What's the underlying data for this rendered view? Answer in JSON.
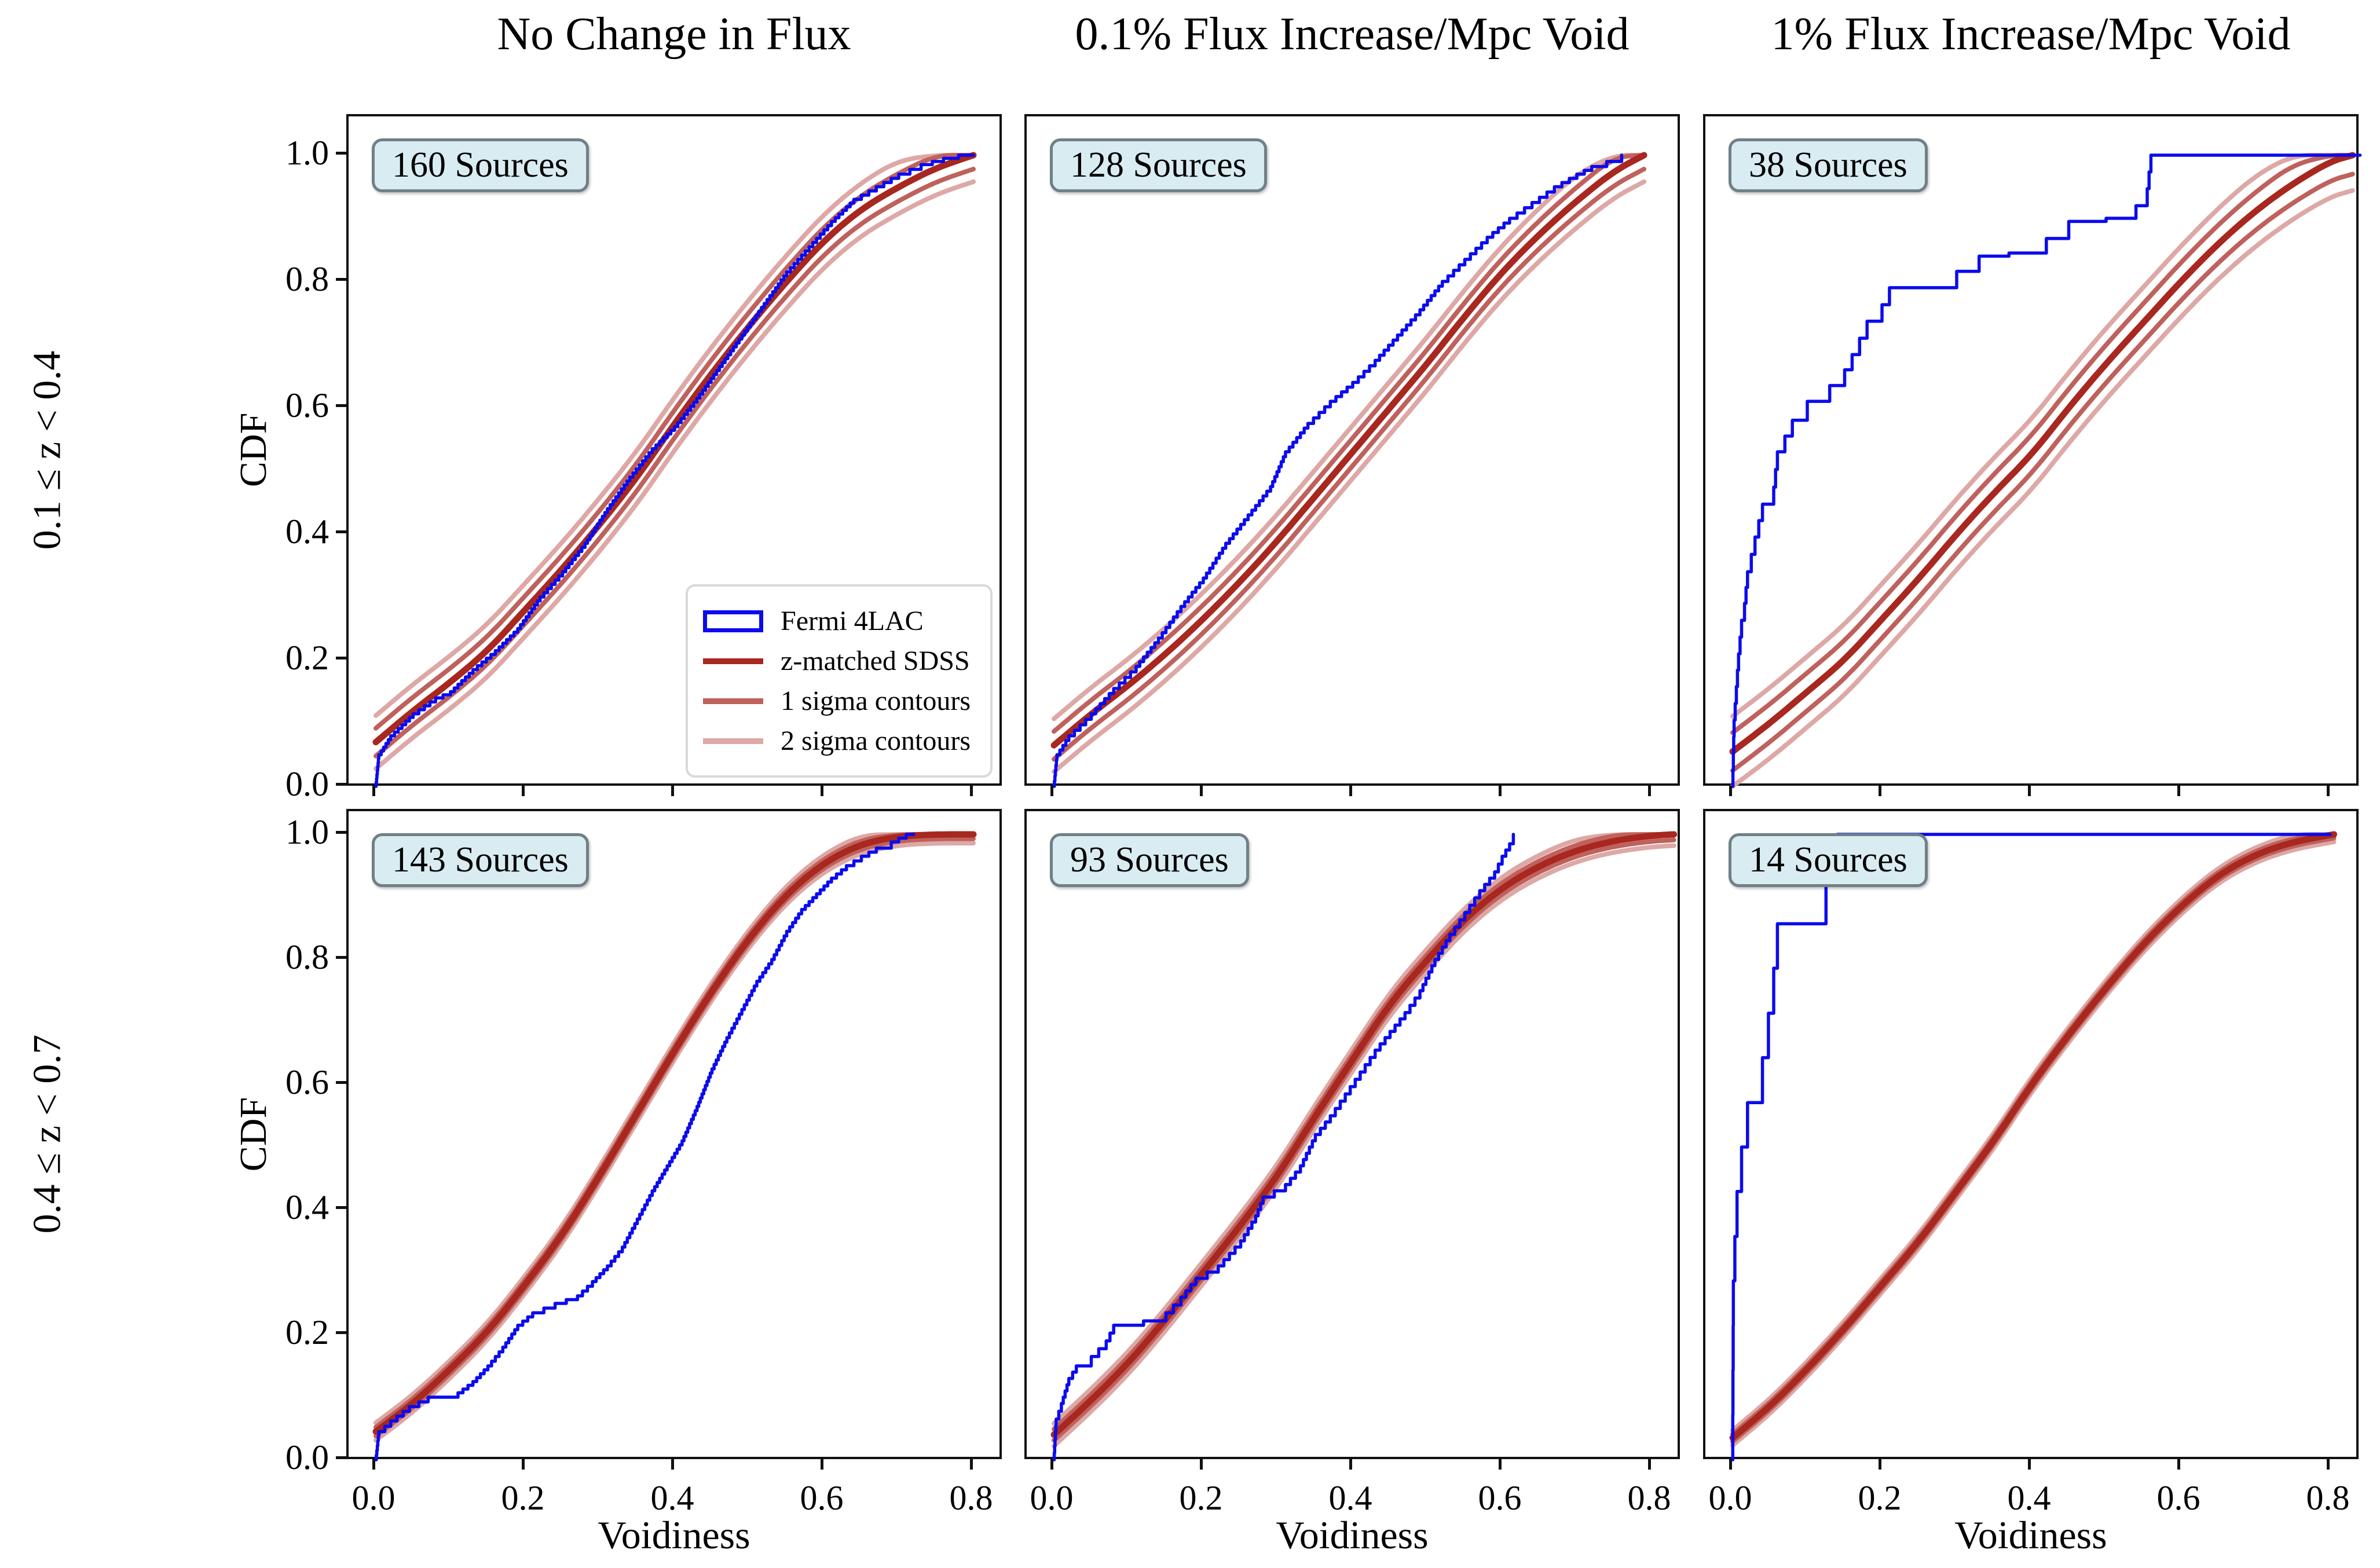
{
  "figure": {
    "column_titles": [
      "No Change in Flux",
      "0.1% Flux Increase/Mpc Void",
      "1% Flux Increase/Mpc Void"
    ],
    "row_labels": [
      "0.1 ≤ z < 0.4",
      "0.4 ≤ z < 0.7"
    ],
    "ylabel": "CDF",
    "xlabel": "Voidiness",
    "x_ticks": [
      0.0,
      0.2,
      0.4,
      0.6,
      0.8
    ],
    "y_ticks": [
      0.0,
      0.2,
      0.4,
      0.6,
      0.8,
      1.0
    ],
    "xlim": [
      0.0,
      0.85
    ],
    "ylim": [
      0.0,
      1.09
    ],
    "grid": false
  },
  "colors": {
    "fermi_blue": "#0b0bee",
    "sdss_red": "#a8271f",
    "sigma1_red": "#bf615c",
    "sigma2_pink": "#dda8a5",
    "badge_fill": "#d9ecf2",
    "badge_border": "#6f8086",
    "axis_black": "#111111"
  },
  "legend": {
    "entries": [
      {
        "label": "Fermi 4LAC",
        "type": "rect",
        "color": "#0b0bee"
      },
      {
        "label": "z-matched SDSS",
        "type": "line",
        "color": "#a8271f"
      },
      {
        "label": "1 sigma contours",
        "type": "line",
        "color": "#bf615c"
      },
      {
        "label": "2 sigma contours",
        "type": "line",
        "color": "#dda8a5"
      }
    ],
    "position": "lower right of first panel"
  },
  "chart_data": [
    {
      "type": "line",
      "panel": "row 0.1<=z<0.4, No Change in Flux",
      "badge": "160 Sources",
      "n_sources": 160,
      "sigma1_offset": 0.022,
      "sigma2_offset": 0.042,
      "fermi_4lac_ecdf": [
        [
          0,
          0
        ],
        [
          0.004,
          0.05
        ],
        [
          0.02,
          0.08
        ],
        [
          0.05,
          0.115
        ],
        [
          0.08,
          0.14
        ],
        [
          0.1,
          0.15
        ],
        [
          0.13,
          0.185
        ],
        [
          0.16,
          0.215
        ],
        [
          0.19,
          0.25
        ],
        [
          0.22,
          0.3
        ],
        [
          0.25,
          0.34
        ],
        [
          0.28,
          0.385
        ],
        [
          0.31,
          0.44
        ],
        [
          0.34,
          0.49
        ],
        [
          0.37,
          0.535
        ],
        [
          0.4,
          0.57
        ],
        [
          0.43,
          0.615
        ],
        [
          0.46,
          0.665
        ],
        [
          0.49,
          0.715
        ],
        [
          0.52,
          0.765
        ],
        [
          0.55,
          0.815
        ],
        [
          0.58,
          0.855
        ],
        [
          0.61,
          0.895
        ],
        [
          0.64,
          0.93
        ],
        [
          0.67,
          0.95
        ],
        [
          0.7,
          0.97
        ],
        [
          0.73,
          0.985
        ],
        [
          0.76,
          0.995
        ],
        [
          0.78,
          1.0
        ],
        [
          0.8,
          1.0
        ]
      ],
      "z_matched_sdss_cdf": [
        [
          0,
          0.07
        ],
        [
          0.05,
          0.12
        ],
        [
          0.1,
          0.165
        ],
        [
          0.15,
          0.215
        ],
        [
          0.2,
          0.28
        ],
        [
          0.25,
          0.345
        ],
        [
          0.3,
          0.415
        ],
        [
          0.35,
          0.49
        ],
        [
          0.4,
          0.575
        ],
        [
          0.45,
          0.655
        ],
        [
          0.5,
          0.73
        ],
        [
          0.55,
          0.8
        ],
        [
          0.6,
          0.865
        ],
        [
          0.65,
          0.915
        ],
        [
          0.7,
          0.95
        ],
        [
          0.75,
          0.98
        ],
        [
          0.8,
          1.0
        ]
      ]
    },
    {
      "type": "line",
      "panel": "row 0.1<=z<0.4, 0.1% Flux Increase/Mpc Void",
      "badge": "128 Sources",
      "n_sources": 128,
      "sigma1_offset": 0.022,
      "sigma2_offset": 0.042,
      "fermi_4lac_ecdf": [
        [
          0,
          0
        ],
        [
          0.004,
          0.05
        ],
        [
          0.02,
          0.08
        ],
        [
          0.05,
          0.115
        ],
        [
          0.08,
          0.155
        ],
        [
          0.11,
          0.19
        ],
        [
          0.14,
          0.235
        ],
        [
          0.17,
          0.285
        ],
        [
          0.2,
          0.33
        ],
        [
          0.23,
          0.385
        ],
        [
          0.26,
          0.43
        ],
        [
          0.29,
          0.475
        ],
        [
          0.31,
          0.53
        ],
        [
          0.34,
          0.575
        ],
        [
          0.37,
          0.61
        ],
        [
          0.4,
          0.64
        ],
        [
          0.43,
          0.675
        ],
        [
          0.46,
          0.715
        ],
        [
          0.49,
          0.755
        ],
        [
          0.52,
          0.8
        ],
        [
          0.55,
          0.835
        ],
        [
          0.58,
          0.87
        ],
        [
          0.61,
          0.9
        ],
        [
          0.64,
          0.925
        ],
        [
          0.67,
          0.95
        ],
        [
          0.7,
          0.97
        ],
        [
          0.72,
          0.982
        ],
        [
          0.74,
          0.99
        ],
        [
          0.76,
          1.0
        ]
      ],
      "z_matched_sdss_cdf": [
        [
          0,
          0.065
        ],
        [
          0.05,
          0.115
        ],
        [
          0.1,
          0.16
        ],
        [
          0.15,
          0.21
        ],
        [
          0.2,
          0.265
        ],
        [
          0.25,
          0.325
        ],
        [
          0.3,
          0.39
        ],
        [
          0.35,
          0.46
        ],
        [
          0.4,
          0.53
        ],
        [
          0.45,
          0.6
        ],
        [
          0.5,
          0.67
        ],
        [
          0.55,
          0.745
        ],
        [
          0.6,
          0.815
        ],
        [
          0.65,
          0.875
        ],
        [
          0.7,
          0.928
        ],
        [
          0.75,
          0.975
        ],
        [
          0.79,
          1.0
        ]
      ]
    },
    {
      "type": "line",
      "panel": "row 0.1<=z<0.4, 1% Flux Increase/Mpc Void",
      "badge": "38 Sources",
      "n_sources": 38,
      "sigma1_offset": 0.03,
      "sigma2_offset": 0.056,
      "fermi_4lac_ecdf": [
        [
          0,
          0
        ],
        [
          0.002,
          0.105
        ],
        [
          0.005,
          0.158
        ],
        [
          0.008,
          0.21
        ],
        [
          0.012,
          0.263
        ],
        [
          0.016,
          0.29
        ],
        [
          0.02,
          0.34
        ],
        [
          0.03,
          0.395
        ],
        [
          0.04,
          0.447
        ],
        [
          0.055,
          0.474
        ],
        [
          0.06,
          0.53
        ],
        [
          0.08,
          0.58
        ],
        [
          0.1,
          0.61
        ],
        [
          0.13,
          0.635
        ],
        [
          0.15,
          0.66
        ],
        [
          0.16,
          0.684
        ],
        [
          0.17,
          0.71
        ],
        [
          0.18,
          0.737
        ],
        [
          0.2,
          0.763
        ],
        [
          0.21,
          0.79
        ],
        [
          0.28,
          0.79
        ],
        [
          0.3,
          0.816
        ],
        [
          0.33,
          0.84
        ],
        [
          0.37,
          0.845
        ],
        [
          0.42,
          0.868
        ],
        [
          0.45,
          0.895
        ],
        [
          0.5,
          0.9
        ],
        [
          0.54,
          0.92
        ],
        [
          0.555,
          0.947
        ],
        [
          0.56,
          1.0
        ],
        [
          0.84,
          1.0
        ]
      ],
      "z_matched_sdss_cdf": [
        [
          0,
          0.055
        ],
        [
          0.05,
          0.1
        ],
        [
          0.1,
          0.15
        ],
        [
          0.15,
          0.2
        ],
        [
          0.2,
          0.265
        ],
        [
          0.25,
          0.33
        ],
        [
          0.3,
          0.4
        ],
        [
          0.35,
          0.465
        ],
        [
          0.4,
          0.525
        ],
        [
          0.45,
          0.6
        ],
        [
          0.5,
          0.67
        ],
        [
          0.55,
          0.735
        ],
        [
          0.6,
          0.8
        ],
        [
          0.65,
          0.86
        ],
        [
          0.7,
          0.912
        ],
        [
          0.75,
          0.955
        ],
        [
          0.8,
          0.99
        ],
        [
          0.83,
          1.0
        ]
      ]
    },
    {
      "type": "line",
      "panel": "row 0.4<=z<0.7, No Change in Flux",
      "badge": "143 Sources",
      "n_sources": 143,
      "sigma1_offset": 0.007,
      "sigma2_offset": 0.014,
      "fermi_4lac_ecdf": [
        [
          0,
          0
        ],
        [
          0.004,
          0.045
        ],
        [
          0.02,
          0.062
        ],
        [
          0.045,
          0.085
        ],
        [
          0.07,
          0.1
        ],
        [
          0.11,
          0.107
        ],
        [
          0.13,
          0.125
        ],
        [
          0.15,
          0.15
        ],
        [
          0.17,
          0.18
        ],
        [
          0.19,
          0.215
        ],
        [
          0.21,
          0.235
        ],
        [
          0.24,
          0.25
        ],
        [
          0.27,
          0.262
        ],
        [
          0.29,
          0.285
        ],
        [
          0.31,
          0.31
        ],
        [
          0.33,
          0.34
        ],
        [
          0.35,
          0.385
        ],
        [
          0.37,
          0.43
        ],
        [
          0.39,
          0.47
        ],
        [
          0.41,
          0.51
        ],
        [
          0.43,
          0.565
        ],
        [
          0.45,
          0.625
        ],
        [
          0.47,
          0.675
        ],
        [
          0.49,
          0.72
        ],
        [
          0.51,
          0.765
        ],
        [
          0.53,
          0.8
        ],
        [
          0.55,
          0.845
        ],
        [
          0.57,
          0.88
        ],
        [
          0.59,
          0.905
        ],
        [
          0.61,
          0.93
        ],
        [
          0.63,
          0.95
        ],
        [
          0.65,
          0.965
        ],
        [
          0.67,
          0.978
        ],
        [
          0.69,
          0.988
        ],
        [
          0.71,
          1.0
        ],
        [
          0.72,
          1.0
        ]
      ],
      "z_matched_sdss_cdf": [
        [
          0,
          0.045
        ],
        [
          0.05,
          0.09
        ],
        [
          0.1,
          0.145
        ],
        [
          0.15,
          0.205
        ],
        [
          0.2,
          0.28
        ],
        [
          0.25,
          0.36
        ],
        [
          0.3,
          0.455
        ],
        [
          0.35,
          0.555
        ],
        [
          0.4,
          0.655
        ],
        [
          0.45,
          0.75
        ],
        [
          0.5,
          0.835
        ],
        [
          0.55,
          0.905
        ],
        [
          0.6,
          0.955
        ],
        [
          0.65,
          0.985
        ],
        [
          0.7,
          0.997
        ],
        [
          0.75,
          1.0
        ],
        [
          0.8,
          1.0
        ]
      ]
    },
    {
      "type": "line",
      "panel": "row 0.4<=z<0.7, 0.1% Flux Increase/Mpc Void",
      "badge": "93 Sources",
      "n_sources": 93,
      "sigma1_offset": 0.009,
      "sigma2_offset": 0.018,
      "fermi_4lac_ecdf": [
        [
          0,
          0
        ],
        [
          0.003,
          0.065
        ],
        [
          0.01,
          0.09
        ],
        [
          0.02,
          0.13
        ],
        [
          0.03,
          0.15
        ],
        [
          0.05,
          0.165
        ],
        [
          0.07,
          0.19
        ],
        [
          0.08,
          0.215
        ],
        [
          0.12,
          0.222
        ],
        [
          0.15,
          0.235
        ],
        [
          0.17,
          0.26
        ],
        [
          0.19,
          0.29
        ],
        [
          0.22,
          0.31
        ],
        [
          0.25,
          0.35
        ],
        [
          0.27,
          0.39
        ],
        [
          0.28,
          0.42
        ],
        [
          0.31,
          0.44
        ],
        [
          0.33,
          0.47
        ],
        [
          0.35,
          0.52
        ],
        [
          0.37,
          0.55
        ],
        [
          0.39,
          0.585
        ],
        [
          0.41,
          0.62
        ],
        [
          0.43,
          0.655
        ],
        [
          0.45,
          0.685
        ],
        [
          0.47,
          0.715
        ],
        [
          0.49,
          0.75
        ],
        [
          0.51,
          0.8
        ],
        [
          0.53,
          0.84
        ],
        [
          0.55,
          0.875
        ],
        [
          0.57,
          0.91
        ],
        [
          0.59,
          0.94
        ],
        [
          0.6,
          0.965
        ],
        [
          0.61,
          0.985
        ],
        [
          0.615,
          1.0
        ]
      ],
      "z_matched_sdss_cdf": [
        [
          0,
          0.04
        ],
        [
          0.05,
          0.095
        ],
        [
          0.1,
          0.155
        ],
        [
          0.15,
          0.225
        ],
        [
          0.2,
          0.3
        ],
        [
          0.25,
          0.375
        ],
        [
          0.3,
          0.455
        ],
        [
          0.35,
          0.55
        ],
        [
          0.4,
          0.64
        ],
        [
          0.45,
          0.73
        ],
        [
          0.5,
          0.8
        ],
        [
          0.55,
          0.865
        ],
        [
          0.6,
          0.915
        ],
        [
          0.65,
          0.95
        ],
        [
          0.7,
          0.975
        ],
        [
          0.75,
          0.99
        ],
        [
          0.8,
          0.998
        ],
        [
          0.83,
          1.0
        ]
      ]
    },
    {
      "type": "line",
      "panel": "row 0.4<=z<0.7, 1% Flux Increase/Mpc Void",
      "badge": "14 Sources",
      "n_sources": 14,
      "sigma1_offset": 0.006,
      "sigma2_offset": 0.012,
      "fermi_4lac_ecdf": [
        [
          0,
          0
        ],
        [
          0.001,
          0.286
        ],
        [
          0.003,
          0.357
        ],
        [
          0.006,
          0.429
        ],
        [
          0.012,
          0.5
        ],
        [
          0.02,
          0.571
        ],
        [
          0.04,
          0.643
        ],
        [
          0.048,
          0.714
        ],
        [
          0.055,
          0.786
        ],
        [
          0.06,
          0.857
        ],
        [
          0.125,
          0.929
        ],
        [
          0.14,
          1.0
        ],
        [
          0.8,
          1.0
        ]
      ],
      "z_matched_sdss_cdf": [
        [
          0,
          0.035
        ],
        [
          0.05,
          0.085
        ],
        [
          0.1,
          0.145
        ],
        [
          0.15,
          0.21
        ],
        [
          0.2,
          0.28
        ],
        [
          0.25,
          0.35
        ],
        [
          0.3,
          0.43
        ],
        [
          0.35,
          0.51
        ],
        [
          0.4,
          0.6
        ],
        [
          0.45,
          0.68
        ],
        [
          0.5,
          0.755
        ],
        [
          0.55,
          0.825
        ],
        [
          0.6,
          0.885
        ],
        [
          0.65,
          0.935
        ],
        [
          0.7,
          0.968
        ],
        [
          0.75,
          0.988
        ],
        [
          0.805,
          1.0
        ]
      ]
    }
  ]
}
